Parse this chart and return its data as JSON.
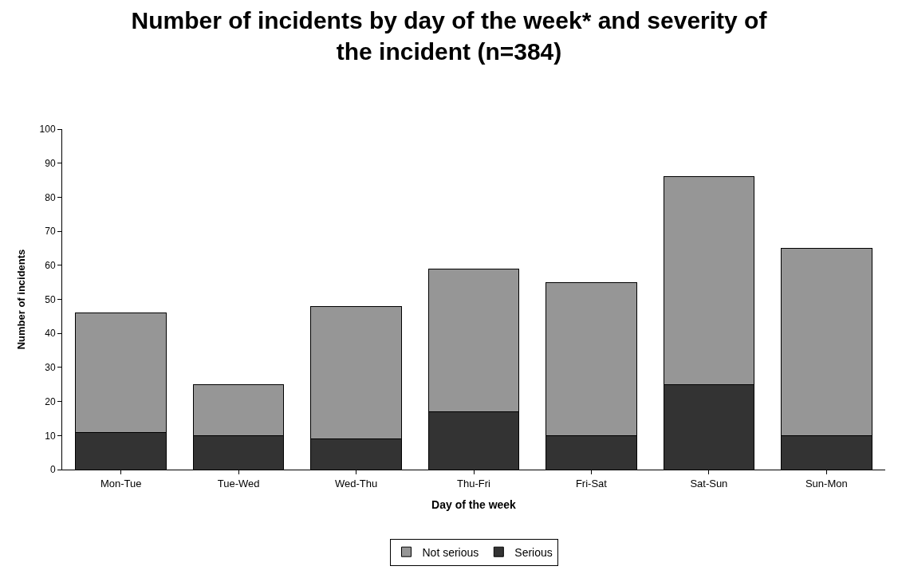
{
  "chart_data": {
    "type": "bar",
    "title": "Number of incidents by day of the week* and severity of the incident (n=384)",
    "xlabel": "Day of the week",
    "ylabel": "Number of incidents",
    "categories": [
      "Mon-Tue",
      "Tue-Wed",
      "Wed-Thu",
      "Thu-Fri",
      "Fri-Sat",
      "Sat-Sun",
      "Sun-Mon"
    ],
    "series": [
      {
        "name": "Serious",
        "color": "#333333",
        "values": [
          11,
          10,
          9,
          17,
          10,
          25,
          10
        ]
      },
      {
        "name": "Not serious",
        "color": "#969696",
        "values": [
          35,
          15,
          39,
          42,
          45,
          61,
          55
        ]
      }
    ],
    "stacked": true,
    "ylim": [
      0,
      100
    ],
    "yticks": [
      0,
      10,
      20,
      30,
      40,
      50,
      60,
      70,
      80,
      90,
      100
    ],
    "grid": false,
    "legend": "bottom"
  }
}
